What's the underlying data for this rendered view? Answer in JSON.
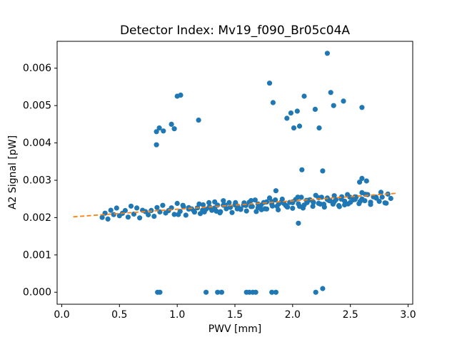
{
  "chart_data": {
    "type": "scatter",
    "title": "Detector Index: Mv19_f090_Br05c04A",
    "xlabel": "PWV [mm]",
    "ylabel": "A2 Signal [pW]",
    "xlim": [
      -0.04,
      3.04
    ],
    "ylim": [
      -0.00032,
      0.00672
    ],
    "xticks": [
      0.0,
      0.5,
      1.0,
      1.5,
      2.0,
      2.5,
      3.0
    ],
    "xtick_labels": [
      "0.0",
      "0.5",
      "1.0",
      "1.5",
      "2.0",
      "2.5",
      "3.0"
    ],
    "yticks": [
      0.0,
      0.001,
      0.002,
      0.003,
      0.004,
      0.005,
      0.006
    ],
    "ytick_labels": [
      "0.000",
      "0.001",
      "0.002",
      "0.003",
      "0.004",
      "0.005",
      "0.006"
    ],
    "grid": false,
    "legend": null,
    "marker_color": "#1f77b4",
    "fit_line": {
      "style": "dashed",
      "color": "#ff7f0e",
      "x": [
        0.1,
        2.9
      ],
      "y": [
        0.00202,
        0.00265
      ]
    },
    "points": [
      [
        0.35,
        0.002003
      ],
      [
        0.375,
        0.002118
      ],
      [
        0.4,
        0.001962
      ],
      [
        0.425,
        0.002197
      ],
      [
        0.45,
        0.002081
      ],
      [
        0.475,
        0.002256
      ],
      [
        0.5,
        0.00205
      ],
      [
        0.525,
        0.002115
      ],
      [
        0.55,
        0.002189
      ],
      [
        0.575,
        0.002014
      ],
      [
        0.6,
        0.002308
      ],
      [
        0.625,
        0.002093
      ],
      [
        0.65,
        0.002257
      ],
      [
        0.675,
        0.001992
      ],
      [
        0.7,
        0.002196
      ],
      [
        0.725,
        0.002161
      ],
      [
        0.75,
        0.002075
      ],
      [
        0.775,
        0.00219
      ],
      [
        0.8,
        0.002034
      ],
      [
        0.825,
        0.002269
      ],
      [
        0.85,
        0.002153
      ],
      [
        0.875,
        0.002328
      ],
      [
        0.9,
        0.002122
      ],
      [
        0.925,
        0.002187
      ],
      [
        0.95,
        0.002261
      ],
      [
        0.975,
        0.002086
      ],
      [
        1.0,
        0.00238
      ],
      [
        1.025,
        0.002165
      ],
      [
        1.05,
        0.002329
      ],
      [
        1.075,
        0.002064
      ],
      [
        1.1,
        0.002268
      ],
      [
        1.125,
        0.002233
      ],
      [
        1.15,
        0.002147
      ],
      [
        1.175,
        0.002262
      ],
      [
        1.2,
        0.002106
      ],
      [
        1.225,
        0.002341
      ],
      [
        1.25,
        0.002225
      ],
      [
        1.275,
        0.0024
      ],
      [
        1.3,
        0.002194
      ],
      [
        1.325,
        0.002259
      ],
      [
        1.35,
        0.002333
      ],
      [
        1.375,
        0.002158
      ],
      [
        1.4,
        0.002452
      ],
      [
        1.425,
        0.002237
      ],
      [
        1.45,
        0.002401
      ],
      [
        1.475,
        0.002136
      ],
      [
        1.5,
        0.00234
      ],
      [
        1.525,
        0.002305
      ],
      [
        1.55,
        0.002219
      ],
      [
        1.575,
        0.002334
      ],
      [
        1.6,
        0.002178
      ],
      [
        1.625,
        0.002413
      ],
      [
        1.65,
        0.002297
      ],
      [
        1.675,
        0.002472
      ],
      [
        1.7,
        0.002266
      ],
      [
        1.725,
        0.002331
      ],
      [
        1.75,
        0.002405
      ],
      [
        1.775,
        0.00223
      ],
      [
        1.8,
        0.002524
      ],
      [
        1.825,
        0.002309
      ],
      [
        1.85,
        0.002473
      ],
      [
        1.875,
        0.002208
      ],
      [
        1.9,
        0.002412
      ],
      [
        1.925,
        0.002377
      ],
      [
        1.95,
        0.002291
      ],
      [
        1.975,
        0.002406
      ],
      [
        2.0,
        0.00225
      ],
      [
        2.025,
        0.002485
      ],
      [
        2.05,
        0.002369
      ],
      [
        2.075,
        0.002544
      ],
      [
        2.1,
        0.002338
      ],
      [
        2.125,
        0.002403
      ],
      [
        2.15,
        0.002477
      ],
      [
        2.175,
        0.002302
      ],
      [
        2.2,
        0.002596
      ],
      [
        2.225,
        0.002381
      ],
      [
        2.25,
        0.002545
      ],
      [
        2.275,
        0.00228
      ],
      [
        2.3,
        0.002484
      ],
      [
        2.325,
        0.002449
      ],
      [
        2.35,
        0.002363
      ],
      [
        2.375,
        0.002478
      ],
      [
        2.4,
        0.002322
      ],
      [
        2.425,
        0.002557
      ],
      [
        2.45,
        0.002441
      ],
      [
        2.475,
        0.002616
      ],
      [
        2.5,
        0.00241
      ],
      [
        2.525,
        0.002475
      ],
      [
        2.55,
        0.002549
      ],
      [
        2.575,
        0.002374
      ],
      [
        2.6,
        0.002668
      ],
      [
        2.625,
        0.002453
      ],
      [
        2.65,
        0.002617
      ],
      [
        2.675,
        0.002352
      ],
      [
        2.7,
        0.002556
      ],
      [
        2.725,
        0.002521
      ],
      [
        2.75,
        0.002435
      ],
      [
        2.775,
        0.00255
      ],
      [
        2.8,
        0.002394
      ],
      [
        2.825,
        0.002629
      ],
      [
        2.85,
        0.002513
      ],
      [
        1.01,
        0.002082
      ],
      [
        1.055,
        0.00229
      ],
      [
        1.1,
        0.002228
      ],
      [
        1.145,
        0.002176
      ],
      [
        1.19,
        0.002364
      ],
      [
        1.235,
        0.002152
      ],
      [
        1.28,
        0.00229
      ],
      [
        1.325,
        0.002419
      ],
      [
        1.37,
        0.002127
      ],
      [
        1.415,
        0.002335
      ],
      [
        1.46,
        0.002273
      ],
      [
        1.505,
        0.002401
      ],
      [
        1.55,
        0.002229
      ],
      [
        1.595,
        0.002327
      ],
      [
        1.64,
        0.002455
      ],
      [
        1.685,
        0.002163
      ],
      [
        1.73,
        0.002211
      ],
      [
        1.775,
        0.00242
      ],
      [
        1.82,
        0.002358
      ],
      [
        1.865,
        0.002306
      ],
      [
        1.91,
        0.002494
      ],
      [
        1.955,
        0.002282
      ],
      [
        2.0,
        0.00242
      ],
      [
        2.045,
        0.002548
      ],
      [
        2.09,
        0.002256
      ],
      [
        2.135,
        0.002464
      ],
      [
        2.18,
        0.002402
      ],
      [
        2.225,
        0.002531
      ],
      [
        2.27,
        0.002359
      ],
      [
        2.315,
        0.002457
      ],
      [
        2.36,
        0.002585
      ],
      [
        2.405,
        0.002293
      ],
      [
        2.45,
        0.002341
      ],
      [
        2.495,
        0.002549
      ],
      [
        2.54,
        0.002487
      ],
      [
        2.585,
        0.002435
      ],
      [
        2.63,
        0.002623
      ],
      [
        2.675,
        0.002412
      ],
      [
        2.72,
        0.00255
      ],
      [
        2.765,
        0.002678
      ],
      [
        2.81,
        0.002386
      ],
      [
        1.22,
        0.0022
      ],
      [
        1.28,
        0.00227
      ],
      [
        1.34,
        0.002171
      ],
      [
        1.4,
        0.002332
      ],
      [
        1.46,
        0.002283
      ],
      [
        1.52,
        0.002234
      ],
      [
        1.58,
        0.002394
      ],
      [
        1.64,
        0.002295
      ],
      [
        1.7,
        0.002366
      ],
      [
        1.76,
        0.002237
      ],
      [
        1.82,
        0.002428
      ],
      [
        1.88,
        0.002368
      ],
      [
        1.94,
        0.002329
      ],
      [
        2.0,
        0.0024
      ],
      [
        2.06,
        0.002301
      ],
      [
        2.12,
        0.002462
      ],
      [
        2.18,
        0.002412
      ],
      [
        2.24,
        0.002363
      ],
      [
        2.3,
        0.002524
      ],
      [
        2.36,
        0.002425
      ],
      [
        2.42,
        0.002496
      ],
      [
        2.48,
        0.002366
      ],
      [
        2.54,
        0.002557
      ],
      [
        2.6,
        0.002498
      ],
      [
        0.82,
        0.00395
      ],
      [
        0.82,
        0.0043
      ],
      [
        0.845,
        0.0044
      ],
      [
        0.88,
        0.00432
      ],
      [
        0.95,
        0.0045
      ],
      [
        0.975,
        0.00438
      ],
      [
        1.0,
        0.00525
      ],
      [
        1.03,
        0.00528
      ],
      [
        1.185,
        0.00461
      ],
      [
        1.8,
        0.0056
      ],
      [
        1.83,
        0.00508
      ],
      [
        1.95,
        0.00466
      ],
      [
        1.985,
        0.0048
      ],
      [
        2.01,
        0.0044
      ],
      [
        2.04,
        0.00485
      ],
      [
        2.06,
        0.00445
      ],
      [
        2.1,
        0.00525
      ],
      [
        2.195,
        0.0049
      ],
      [
        2.23,
        0.0044
      ],
      [
        2.3,
        0.0064
      ],
      [
        2.33,
        0.00535
      ],
      [
        2.355,
        0.005
      ],
      [
        2.44,
        0.00512
      ],
      [
        2.6,
        0.00495
      ],
      [
        2.08,
        0.00328
      ],
      [
        2.26,
        0.00325
      ],
      [
        2.05,
        0.00185
      ],
      [
        2.6,
        0.00305
      ],
      [
        2.64,
        0.00298
      ],
      [
        2.58,
        0.00295
      ],
      [
        1.855,
        0.00272
      ],
      [
        0.83,
        0.0
      ],
      [
        0.85,
        0.0
      ],
      [
        1.25,
        0.0
      ],
      [
        1.35,
        0.0
      ],
      [
        1.385,
        0.0
      ],
      [
        1.6,
        0.0
      ],
      [
        1.625,
        0.0
      ],
      [
        1.655,
        0.0
      ],
      [
        1.68,
        0.0
      ],
      [
        1.82,
        0.0
      ],
      [
        1.855,
        0.0
      ],
      [
        2.2,
        0.0
      ],
      [
        2.26,
        0.0001
      ]
    ]
  }
}
